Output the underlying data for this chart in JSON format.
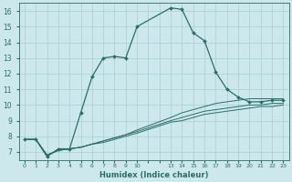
{
  "xlabel": "Humidex (Indice chaleur)",
  "bg_color": "#cde8ec",
  "grid_color": "#a8cdd4",
  "line_color": "#2a6e68",
  "ylim": [
    6.5,
    16.5
  ],
  "yticks": [
    7,
    8,
    9,
    10,
    11,
    12,
    13,
    14,
    15,
    16
  ],
  "xtick_labels": [
    "0",
    "1",
    "2",
    "3",
    "4",
    "5",
    "6",
    "7",
    "8",
    "9",
    "10",
    "",
    "",
    "13",
    "14",
    "15",
    "16",
    "17",
    "18",
    "19",
    "20",
    "21",
    "22",
    "23"
  ],
  "n_xpoints": 24,
  "series1_x": [
    0,
    1,
    2,
    3,
    4,
    5,
    6,
    7,
    8,
    9,
    10,
    13,
    14,
    15,
    16,
    17,
    18,
    19,
    20,
    21,
    22,
    23
  ],
  "series1_y": [
    7.8,
    7.8,
    6.7,
    7.2,
    7.2,
    9.5,
    11.8,
    13.0,
    13.1,
    13.0,
    15.0,
    16.2,
    16.1,
    14.6,
    14.1,
    12.1,
    11.0,
    10.5,
    10.2,
    10.2,
    10.3,
    10.3
  ],
  "series2_x": [
    0,
    1,
    2,
    3,
    4,
    5,
    6,
    7,
    8,
    9,
    10,
    13,
    14,
    15,
    16,
    17,
    18,
    19,
    20,
    21,
    22,
    23
  ],
  "series2_y": [
    7.8,
    7.8,
    6.8,
    7.1,
    7.2,
    7.3,
    7.5,
    7.7,
    7.9,
    8.1,
    8.4,
    9.2,
    9.5,
    9.7,
    9.9,
    10.1,
    10.2,
    10.3,
    10.4,
    10.4,
    10.4,
    10.4
  ],
  "series3_x": [
    0,
    1,
    2,
    3,
    4,
    5,
    6,
    7,
    8,
    9,
    10,
    13,
    14,
    15,
    16,
    17,
    18,
    19,
    20,
    21,
    22,
    23
  ],
  "series3_y": [
    7.8,
    7.8,
    6.8,
    7.1,
    7.2,
    7.3,
    7.5,
    7.7,
    7.9,
    8.1,
    8.3,
    9.0,
    9.2,
    9.4,
    9.6,
    9.7,
    9.8,
    9.9,
    10.0,
    10.0,
    10.1,
    10.1
  ],
  "series4_x": [
    0,
    1,
    2,
    3,
    4,
    5,
    6,
    7,
    8,
    9,
    10,
    13,
    14,
    15,
    16,
    17,
    18,
    19,
    20,
    21,
    22,
    23
  ],
  "series4_y": [
    7.8,
    7.8,
    6.8,
    7.1,
    7.2,
    7.3,
    7.5,
    7.6,
    7.8,
    8.0,
    8.2,
    8.9,
    9.0,
    9.2,
    9.4,
    9.5,
    9.6,
    9.7,
    9.8,
    9.9,
    9.9,
    10.0
  ]
}
